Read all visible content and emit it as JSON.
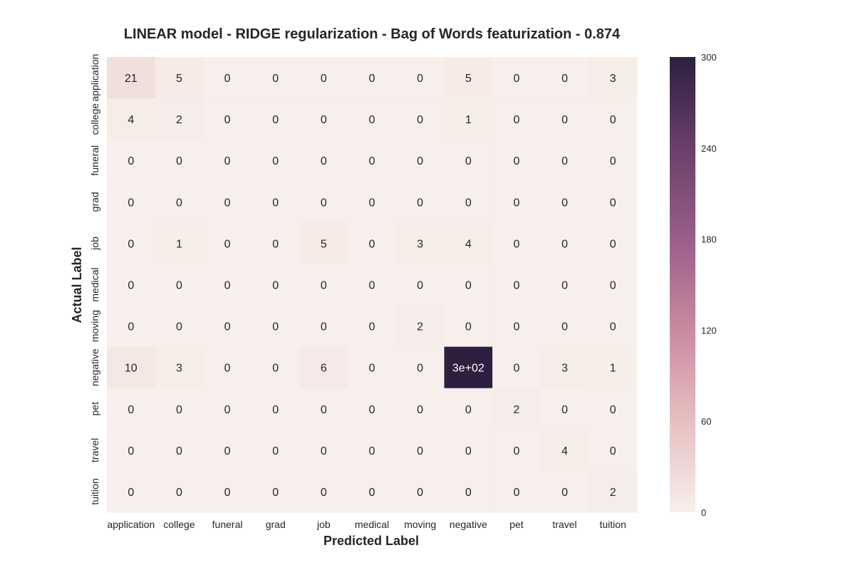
{
  "chart_data": {
    "type": "heatmap",
    "title": "LINEAR model -  RIDGE regularization - Bag of Words featurization - 0.874",
    "xlabel": "Predicted Label",
    "ylabel": "Actual Label",
    "x_categories": [
      "application",
      "college",
      "funeral",
      "grad",
      "job",
      "medical",
      "moving",
      "negative",
      "pet",
      "travel",
      "tuition"
    ],
    "y_categories": [
      "application",
      "college",
      "funeral",
      "grad",
      "job",
      "medical",
      "moving",
      "negative",
      "pet",
      "travel",
      "tuition"
    ],
    "values": [
      [
        21,
        5,
        0,
        0,
        0,
        0,
        0,
        5,
        0,
        0,
        3
      ],
      [
        4,
        2,
        0,
        0,
        0,
        0,
        0,
        1,
        0,
        0,
        0
      ],
      [
        0,
        0,
        0,
        0,
        0,
        0,
        0,
        0,
        0,
        0,
        0
      ],
      [
        0,
        0,
        0,
        0,
        0,
        0,
        0,
        0,
        0,
        0,
        0
      ],
      [
        0,
        1,
        0,
        0,
        5,
        0,
        3,
        4,
        0,
        0,
        0
      ],
      [
        0,
        0,
        0,
        0,
        0,
        0,
        0,
        0,
        0,
        0,
        0
      ],
      [
        0,
        0,
        0,
        0,
        0,
        0,
        2,
        0,
        0,
        0,
        0
      ],
      [
        10,
        3,
        0,
        0,
        6,
        0,
        0,
        300,
        0,
        3,
        1
      ],
      [
        0,
        0,
        0,
        0,
        0,
        0,
        0,
        0,
        2,
        0,
        0
      ],
      [
        0,
        0,
        0,
        0,
        0,
        0,
        0,
        0,
        0,
        4,
        0
      ],
      [
        0,
        0,
        0,
        0,
        0,
        0,
        0,
        0,
        0,
        0,
        2
      ]
    ],
    "cell_labels": [
      [
        "21",
        "5",
        "0",
        "0",
        "0",
        "0",
        "0",
        "5",
        "0",
        "0",
        "3"
      ],
      [
        "4",
        "2",
        "0",
        "0",
        "0",
        "0",
        "0",
        "1",
        "0",
        "0",
        "0"
      ],
      [
        "0",
        "0",
        "0",
        "0",
        "0",
        "0",
        "0",
        "0",
        "0",
        "0",
        "0"
      ],
      [
        "0",
        "0",
        "0",
        "0",
        "0",
        "0",
        "0",
        "0",
        "0",
        "0",
        "0"
      ],
      [
        "0",
        "1",
        "0",
        "0",
        "5",
        "0",
        "3",
        "4",
        "0",
        "0",
        "0"
      ],
      [
        "0",
        "0",
        "0",
        "0",
        "0",
        "0",
        "0",
        "0",
        "0",
        "0",
        "0"
      ],
      [
        "0",
        "0",
        "0",
        "0",
        "0",
        "0",
        "2",
        "0",
        "0",
        "0",
        "0"
      ],
      [
        "10",
        "3",
        "0",
        "0",
        "6",
        "0",
        "0",
        "3e+02",
        "0",
        "3",
        "1"
      ],
      [
        "0",
        "0",
        "0",
        "0",
        "0",
        "0",
        "0",
        "0",
        "2",
        "0",
        "0"
      ],
      [
        "0",
        "0",
        "0",
        "0",
        "0",
        "0",
        "0",
        "0",
        "0",
        "4",
        "0"
      ],
      [
        "0",
        "0",
        "0",
        "0",
        "0",
        "0",
        "0",
        "0",
        "0",
        "0",
        "2"
      ]
    ],
    "colorbar": {
      "range": [
        0,
        300
      ],
      "ticks": [
        0,
        60,
        120,
        180,
        240,
        300
      ],
      "colors": [
        "#f7efeb",
        "#e6c0c0",
        "#ca8aa0",
        "#9a5e8a",
        "#6a3f6a",
        "#2d1f3f"
      ]
    },
    "grid": false
  }
}
